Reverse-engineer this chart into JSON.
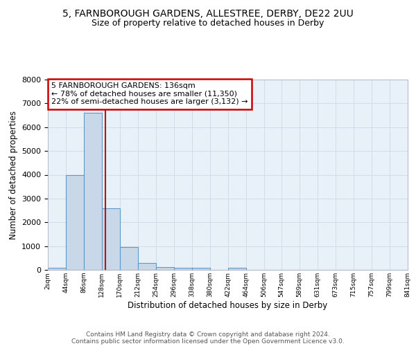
{
  "title1": "5, FARNBOROUGH GARDENS, ALLESTREE, DERBY, DE22 2UU",
  "title2": "Size of property relative to detached houses in Derby",
  "xlabel": "Distribution of detached houses by size in Derby",
  "ylabel": "Number of detached properties",
  "bar_left_edges": [
    2,
    44,
    86,
    128,
    170,
    212,
    254,
    296,
    338,
    380,
    422,
    464,
    506,
    547,
    589,
    631,
    673,
    715,
    757,
    799
  ],
  "bar_heights": [
    80,
    4000,
    6600,
    2600,
    950,
    300,
    120,
    100,
    80,
    0,
    100,
    0,
    0,
    0,
    0,
    0,
    0,
    0,
    0,
    0
  ],
  "bin_width": 42,
  "bar_color": "#c8d8e8",
  "bar_edge_color": "#5b9ac8",
  "bar_linewidth": 0.8,
  "vline_x": 136,
  "vline_color": "#cc0000",
  "vline_linewidth": 1.5,
  "ylim": [
    0,
    8000
  ],
  "yticks": [
    0,
    1000,
    2000,
    3000,
    4000,
    5000,
    6000,
    7000,
    8000
  ],
  "xtick_labels": [
    "2sqm",
    "44sqm",
    "86sqm",
    "128sqm",
    "170sqm",
    "212sqm",
    "254sqm",
    "296sqm",
    "338sqm",
    "380sqm",
    "422sqm",
    "464sqm",
    "506sqm",
    "547sqm",
    "589sqm",
    "631sqm",
    "673sqm",
    "715sqm",
    "757sqm",
    "799sqm",
    "841sqm"
  ],
  "xtick_positions": [
    2,
    44,
    86,
    128,
    170,
    212,
    254,
    296,
    338,
    380,
    422,
    464,
    506,
    547,
    589,
    631,
    673,
    715,
    757,
    799,
    841
  ],
  "annotation_text": "5 FARNBOROUGH GARDENS: 136sqm\n← 78% of detached houses are smaller (11,350)\n22% of semi-detached houses are larger (3,132) →",
  "annotation_box_color": "#ffffff",
  "annotation_border_color": "#cc0000",
  "grid_color": "#d0dce8",
  "bg_color": "#e8f0f8",
  "fig_bg_color": "#ffffff",
  "footer_line1": "Contains HM Land Registry data © Crown copyright and database right 2024.",
  "footer_line2": "Contains public sector information licensed under the Open Government Licence v3.0.",
  "title1_fontsize": 10,
  "title2_fontsize": 9,
  "xlabel_fontsize": 8.5,
  "ylabel_fontsize": 8.5,
  "annotation_fontsize": 8,
  "footer_fontsize": 6.5,
  "ytick_fontsize": 8,
  "xtick_fontsize": 6.5
}
